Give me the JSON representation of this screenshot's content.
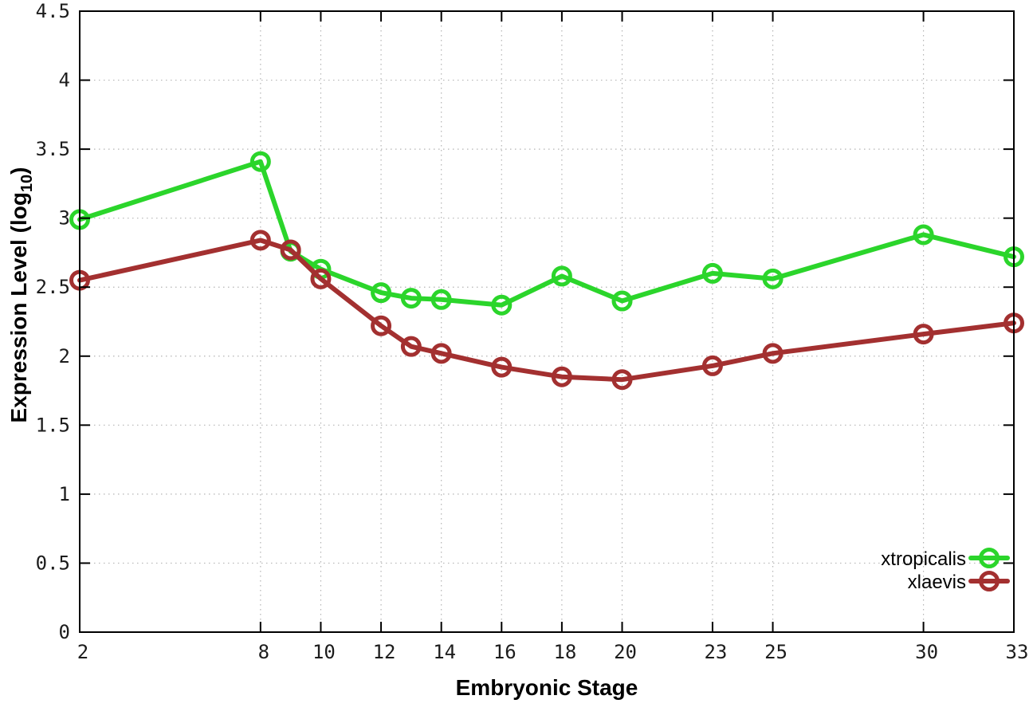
{
  "chart_data": {
    "type": "line",
    "title": "",
    "xlabel": "Embryonic Stage",
    "ylabel": "Expression Level (log10)",
    "ylabel_parts": {
      "main": "Expression Level (log",
      "sub": "10",
      "close": ")"
    },
    "x": [
      2,
      8,
      9,
      10,
      12,
      13,
      14,
      16,
      18,
      20,
      23,
      25,
      30,
      33
    ],
    "series": [
      {
        "name": "xtropicalis",
        "color": "#2bd52b",
        "values": [
          2.99,
          3.41,
          2.76,
          2.63,
          2.46,
          2.42,
          2.41,
          2.37,
          2.58,
          2.4,
          2.6,
          2.56,
          2.88,
          2.72
        ]
      },
      {
        "name": "xlaevis",
        "color": "#a33030",
        "values": [
          2.55,
          2.84,
          2.77,
          2.56,
          2.22,
          2.07,
          2.02,
          1.92,
          1.85,
          1.83,
          1.93,
          2.02,
          2.16,
          2.24
        ]
      }
    ],
    "xlim": [
      2,
      33
    ],
    "ylim": [
      0,
      4.5
    ],
    "xticks": [
      2,
      8,
      10,
      12,
      14,
      16,
      18,
      20,
      23,
      25,
      30,
      33
    ],
    "yticks": [
      0,
      0.5,
      1,
      1.5,
      2,
      2.5,
      3,
      3.5,
      4,
      4.5
    ],
    "ytick_labels": [
      "0",
      "0.5",
      "1",
      "1.5",
      "2",
      "2.5",
      "3",
      "3.5",
      "4",
      "4.5"
    ],
    "grid": true,
    "grid_color": "#b4b4b4",
    "axis_color": "#000000",
    "legend_position": "bottom-right",
    "marker": "open-circle"
  }
}
